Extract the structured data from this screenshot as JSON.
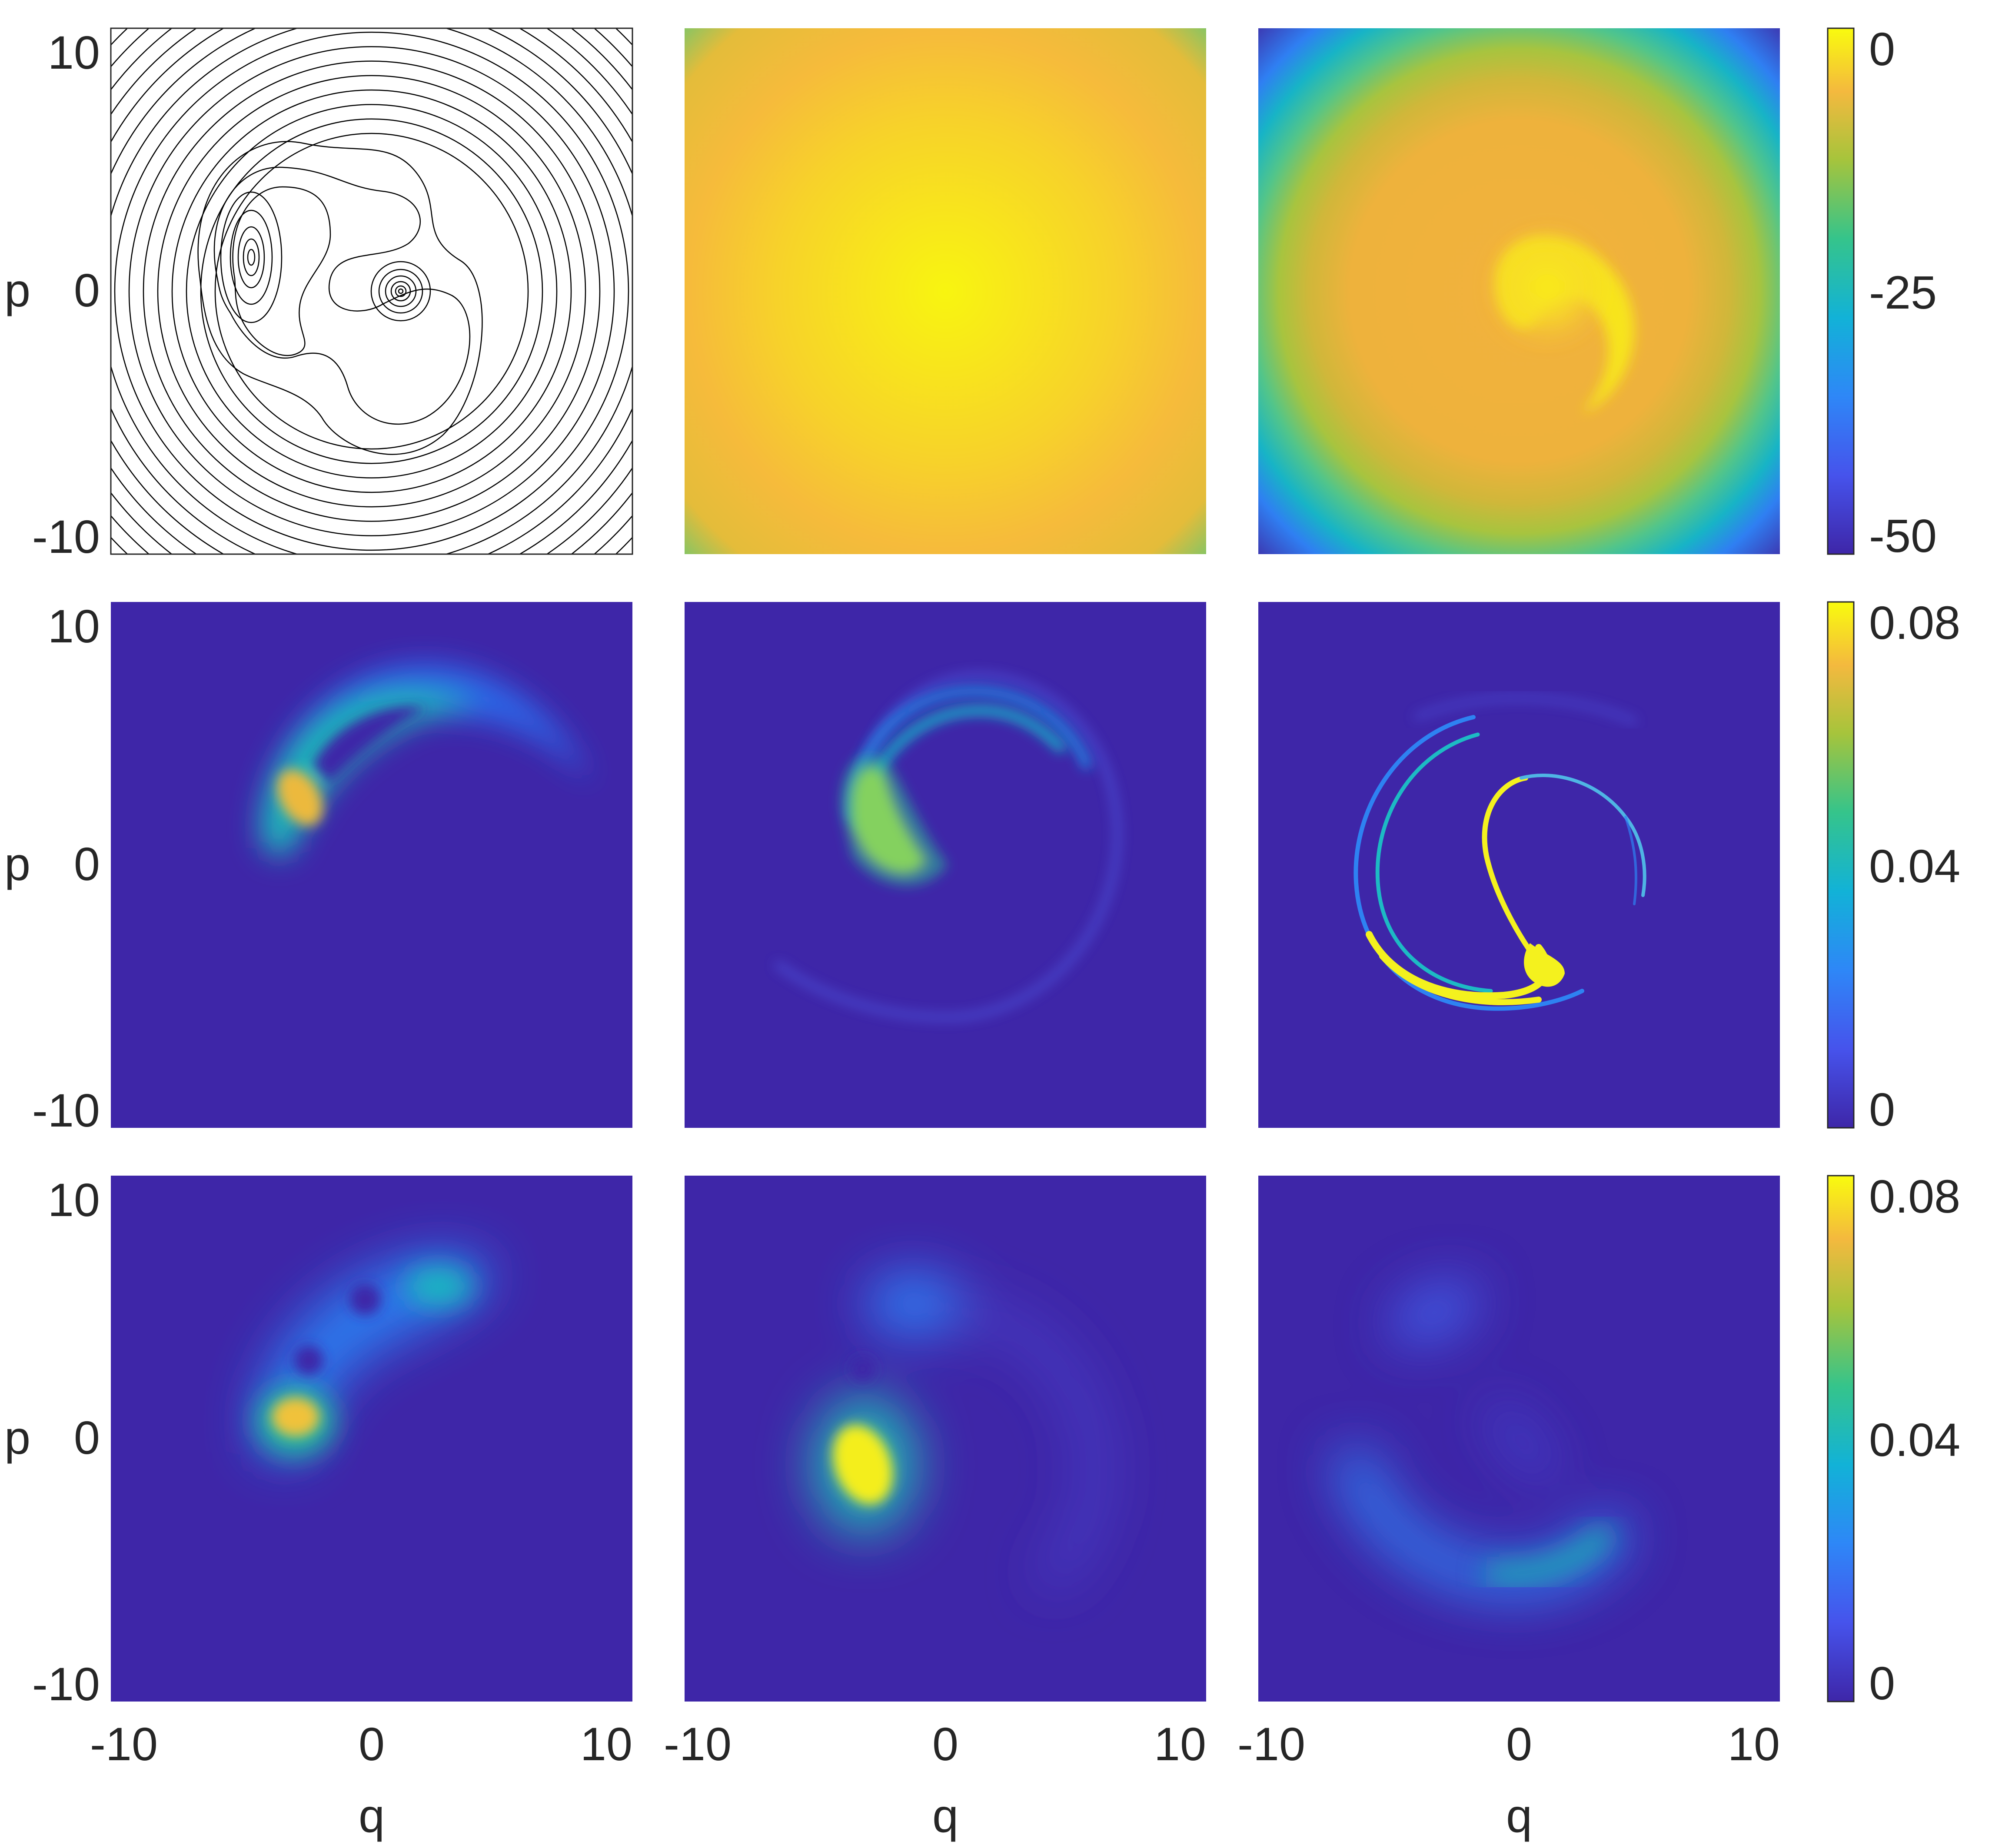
{
  "chart_data": [
    {
      "type": "contour",
      "row": 0,
      "col": 0,
      "xlim": [
        -10,
        10
      ],
      "ylim": [
        -10,
        10
      ],
      "ylabel": "p",
      "yticks": [
        -10,
        0,
        10
      ],
      "line_color": "#000000",
      "features": {
        "outer_circles": {
          "radii_start": 6.0,
          "radii_step": 0.55,
          "count": 14
        },
        "left_island_center": [
          -4.6,
          1.4
        ],
        "center_spiral_center": [
          1.3,
          0.0
        ]
      }
    },
    {
      "type": "heatmap",
      "row": 0,
      "col": 1,
      "xlim": [
        -10,
        10
      ],
      "ylim": [
        -10,
        10
      ],
      "colormap": "parula",
      "clim": [
        -50,
        0
      ],
      "description_values": {
        "center": 0,
        "edge": -12
      }
    },
    {
      "type": "heatmap",
      "row": 0,
      "col": 2,
      "xlim": [
        -10,
        10
      ],
      "ylim": [
        -10,
        10
      ],
      "colormap": "parula",
      "clim": [
        -50,
        0
      ],
      "colorbar": {
        "ticks": [
          0,
          -25,
          -50
        ]
      }
    },
    {
      "type": "heatmap",
      "row": 1,
      "col": 0,
      "xlim": [
        -10,
        10
      ],
      "ylim": [
        -10,
        10
      ],
      "ylabel": "p",
      "yticks": [
        -10,
        0,
        10
      ],
      "colormap": "parula",
      "clim": [
        0,
        0.08
      ]
    },
    {
      "type": "heatmap",
      "row": 1,
      "col": 1,
      "xlim": [
        -10,
        10
      ],
      "ylim": [
        -10,
        10
      ],
      "colormap": "parula",
      "clim": [
        0,
        0.08
      ]
    },
    {
      "type": "heatmap",
      "row": 1,
      "col": 2,
      "xlim": [
        -10,
        10
      ],
      "ylim": [
        -10,
        10
      ],
      "colormap": "parula",
      "clim": [
        0,
        0.08
      ],
      "colorbar": {
        "ticks": [
          0.08,
          0.04,
          0
        ]
      }
    },
    {
      "type": "heatmap",
      "row": 2,
      "col": 0,
      "xlim": [
        -10,
        10
      ],
      "ylim": [
        -10,
        10
      ],
      "xlabel": "q",
      "ylabel": "p",
      "xticks": [
        -10,
        0,
        10
      ],
      "yticks": [
        -10,
        0,
        10
      ],
      "colormap": "parula",
      "clim": [
        0,
        0.08
      ]
    },
    {
      "type": "heatmap",
      "row": 2,
      "col": 1,
      "xlim": [
        -10,
        10
      ],
      "ylim": [
        -10,
        10
      ],
      "xlabel": "q",
      "xticks": [
        -10,
        0,
        10
      ],
      "colormap": "parula",
      "clim": [
        0,
        0.08
      ]
    },
    {
      "type": "heatmap",
      "row": 2,
      "col": 2,
      "xlim": [
        -10,
        10
      ],
      "ylim": [
        -10,
        10
      ],
      "xlabel": "q",
      "xticks": [
        -10,
        0,
        10
      ],
      "colormap": "parula",
      "clim": [
        0,
        0.08
      ],
      "colorbar": {
        "ticks": [
          0.08,
          0.04,
          0
        ]
      }
    }
  ],
  "colors": {
    "low": "#3e26a8",
    "mid_low": "#1e8ce6",
    "mid": "#1fb3bd",
    "mid_high": "#7fc866",
    "high_orange": "#f8ba3d",
    "high": "#f9fb0e"
  },
  "labels": {
    "p": "p",
    "q": "q",
    "tick_m10": "-10",
    "tick_0": "0",
    "tick_10": "10",
    "cb_0": "0",
    "cb_m25": "-25",
    "cb_m50": "-50",
    "cb_008": "0.08",
    "cb_004": "0.04",
    "cb_zero": "0"
  }
}
